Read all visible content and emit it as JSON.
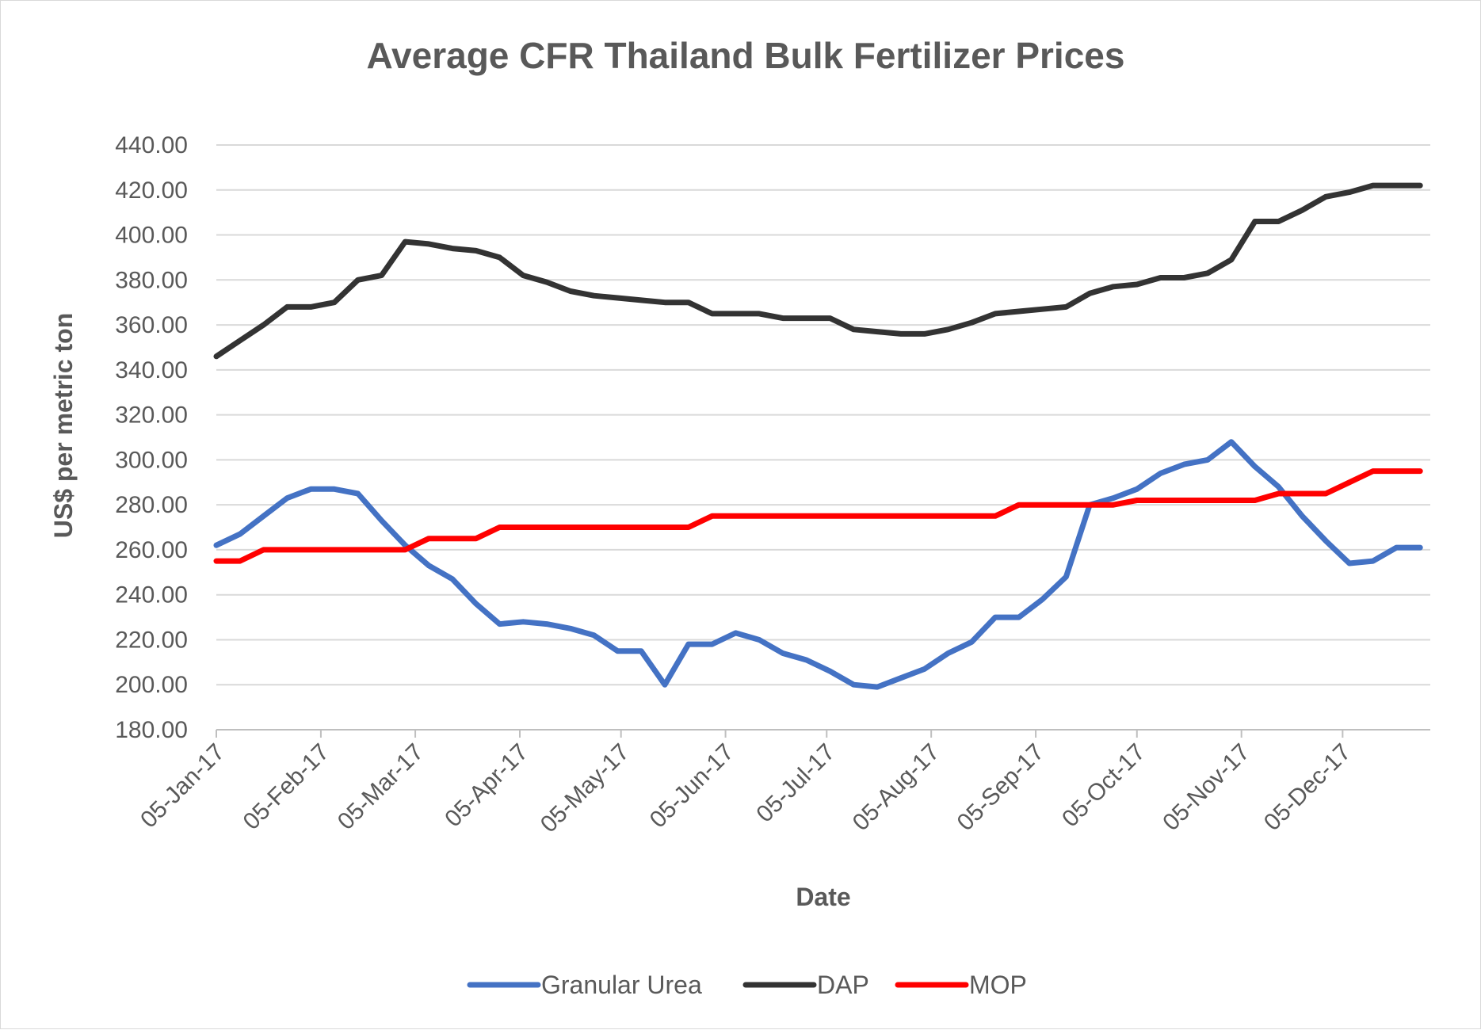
{
  "chart_data": {
    "type": "line",
    "title": "Average CFR Thailand Bulk Fertilizer Prices",
    "xlabel": "Date",
    "ylabel": "US$ per metric ton",
    "ylim": [
      180,
      440
    ],
    "yticks": [
      "180.00",
      "200.00",
      "220.00",
      "240.00",
      "260.00",
      "280.00",
      "300.00",
      "320.00",
      "340.00",
      "360.00",
      "380.00",
      "400.00",
      "420.00",
      "440.00"
    ],
    "xlim": [
      "2017-01-05",
      "2017-12-31"
    ],
    "xticks": [
      {
        "date": "2017-01-05",
        "label": "05-Jan-17"
      },
      {
        "date": "2017-02-05",
        "label": "05-Feb-17"
      },
      {
        "date": "2017-03-05",
        "label": "05-Mar-17"
      },
      {
        "date": "2017-04-05",
        "label": "05-Apr-17"
      },
      {
        "date": "2017-05-05",
        "label": "05-May-17"
      },
      {
        "date": "2017-06-05",
        "label": "05-Jun-17"
      },
      {
        "date": "2017-07-05",
        "label": "05-Jul-17"
      },
      {
        "date": "2017-08-05",
        "label": "05-Aug-17"
      },
      {
        "date": "2017-09-05",
        "label": "05-Sep-17"
      },
      {
        "date": "2017-10-05",
        "label": "05-Oct-17"
      },
      {
        "date": "2017-11-05",
        "label": "05-Nov-17"
      },
      {
        "date": "2017-12-05",
        "label": "05-Dec-17"
      }
    ],
    "x": [
      "2017-01-05",
      "2017-01-12",
      "2017-01-19",
      "2017-01-26",
      "2017-02-02",
      "2017-02-09",
      "2017-02-16",
      "2017-02-23",
      "2017-03-02",
      "2017-03-09",
      "2017-03-16",
      "2017-03-23",
      "2017-03-30",
      "2017-04-06",
      "2017-04-13",
      "2017-04-20",
      "2017-04-27",
      "2017-05-04",
      "2017-05-11",
      "2017-05-18",
      "2017-05-25",
      "2017-06-01",
      "2017-06-08",
      "2017-06-15",
      "2017-06-22",
      "2017-06-29",
      "2017-07-06",
      "2017-07-13",
      "2017-07-20",
      "2017-07-27",
      "2017-08-03",
      "2017-08-10",
      "2017-08-17",
      "2017-08-24",
      "2017-08-31",
      "2017-09-07",
      "2017-09-14",
      "2017-09-21",
      "2017-09-28",
      "2017-10-05",
      "2017-10-12",
      "2017-10-19",
      "2017-10-26",
      "2017-11-02",
      "2017-11-09",
      "2017-11-16",
      "2017-11-23",
      "2017-11-30",
      "2017-12-07",
      "2017-12-14",
      "2017-12-21",
      "2017-12-28"
    ],
    "series": [
      {
        "name": "Granular Urea",
        "color": "#4472C4",
        "values": [
          262,
          267,
          275,
          283,
          287,
          287,
          285,
          273,
          262,
          253,
          247,
          236,
          227,
          228,
          227,
          225,
          222,
          215,
          215,
          200,
          218,
          218,
          223,
          220,
          214,
          211,
          206,
          200,
          199,
          203,
          207,
          214,
          219,
          230,
          230,
          238,
          248,
          280,
          283,
          287,
          294,
          298,
          300,
          308,
          297,
          288,
          275,
          264,
          254,
          255,
          261,
          261
        ]
      },
      {
        "name": "DAP",
        "color": "#333333",
        "values": [
          346,
          353,
          360,
          368,
          368,
          370,
          380,
          382,
          397,
          396,
          394,
          393,
          390,
          382,
          379,
          375,
          373,
          372,
          371,
          370,
          370,
          365,
          365,
          365,
          363,
          363,
          363,
          358,
          357,
          356,
          356,
          358,
          361,
          365,
          366,
          367,
          368,
          374,
          377,
          378,
          381,
          381,
          383,
          389,
          406,
          406,
          411,
          417,
          419,
          422,
          422,
          422
        ]
      },
      {
        "name": "MOP",
        "color": "#FF0000",
        "values": [
          255,
          255,
          260,
          260,
          260,
          260,
          260,
          260,
          260,
          265,
          265,
          265,
          270,
          270,
          270,
          270,
          270,
          270,
          270,
          270,
          270,
          275,
          275,
          275,
          275,
          275,
          275,
          275,
          275,
          275,
          275,
          275,
          275,
          275,
          280,
          280,
          280,
          280,
          280,
          282,
          282,
          282,
          282,
          282,
          282,
          285,
          285,
          285,
          290,
          295,
          295,
          295
        ]
      }
    ],
    "legend": "bottom",
    "grid": true
  }
}
